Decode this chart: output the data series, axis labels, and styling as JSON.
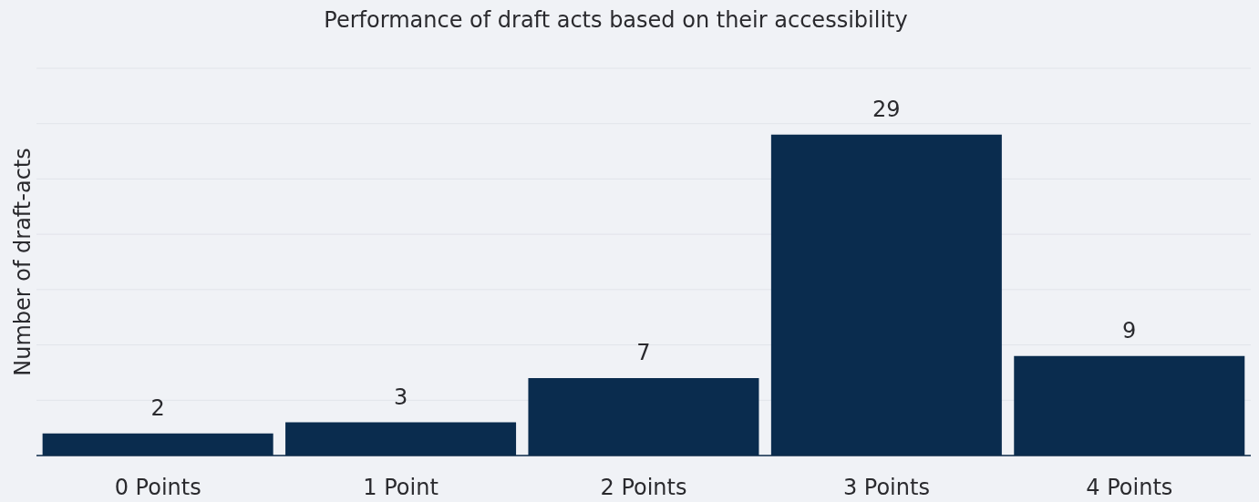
{
  "chart_data": {
    "type": "bar",
    "title": "Performance of draft acts based on their accessibility",
    "ylabel": "Number of draft-acts",
    "categories": [
      "0 Points",
      "1 Point",
      "2 Points",
      "3 Points",
      "4 Points"
    ],
    "values": [
      2,
      3,
      7,
      29,
      9
    ],
    "color": "#0a2c4e",
    "ylim": [
      0,
      35
    ],
    "grid": "y",
    "data_labels": true,
    "tick_labels": "x"
  }
}
